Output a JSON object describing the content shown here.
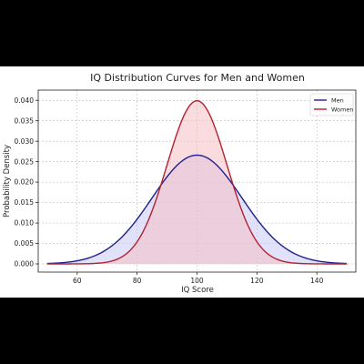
{
  "chart_data": {
    "type": "area",
    "title": "IQ Distribution Curves for Men and Women",
    "xlabel": "IQ Score",
    "ylabel": "Probability Density",
    "xlim": [
      47,
      153
    ],
    "ylim": [
      -0.002,
      0.0425
    ],
    "x_ticks": [
      60,
      80,
      100,
      120,
      140
    ],
    "y_ticks": [
      0.0,
      0.005,
      0.01,
      0.015,
      0.02,
      0.025,
      0.03,
      0.035,
      0.04
    ],
    "x_tick_labels": [
      "60",
      "80",
      "100",
      "120",
      "140"
    ],
    "y_tick_labels": [
      "0.000",
      "0.005",
      "0.010",
      "0.015",
      "0.020",
      "0.025",
      "0.030",
      "0.035",
      "0.040"
    ],
    "grid": true,
    "legend_position": "top-right",
    "x_range": [
      50,
      150
    ],
    "series": [
      {
        "name": "Men",
        "color": "#1f1f8f",
        "fill": "#c8c8f5",
        "mean": 100,
        "sd": 15,
        "peak": 0.0266
      },
      {
        "name": "Women",
        "color": "#b22230",
        "fill": "#f5c0c4",
        "mean": 100,
        "sd": 10,
        "peak": 0.0399
      }
    ]
  }
}
